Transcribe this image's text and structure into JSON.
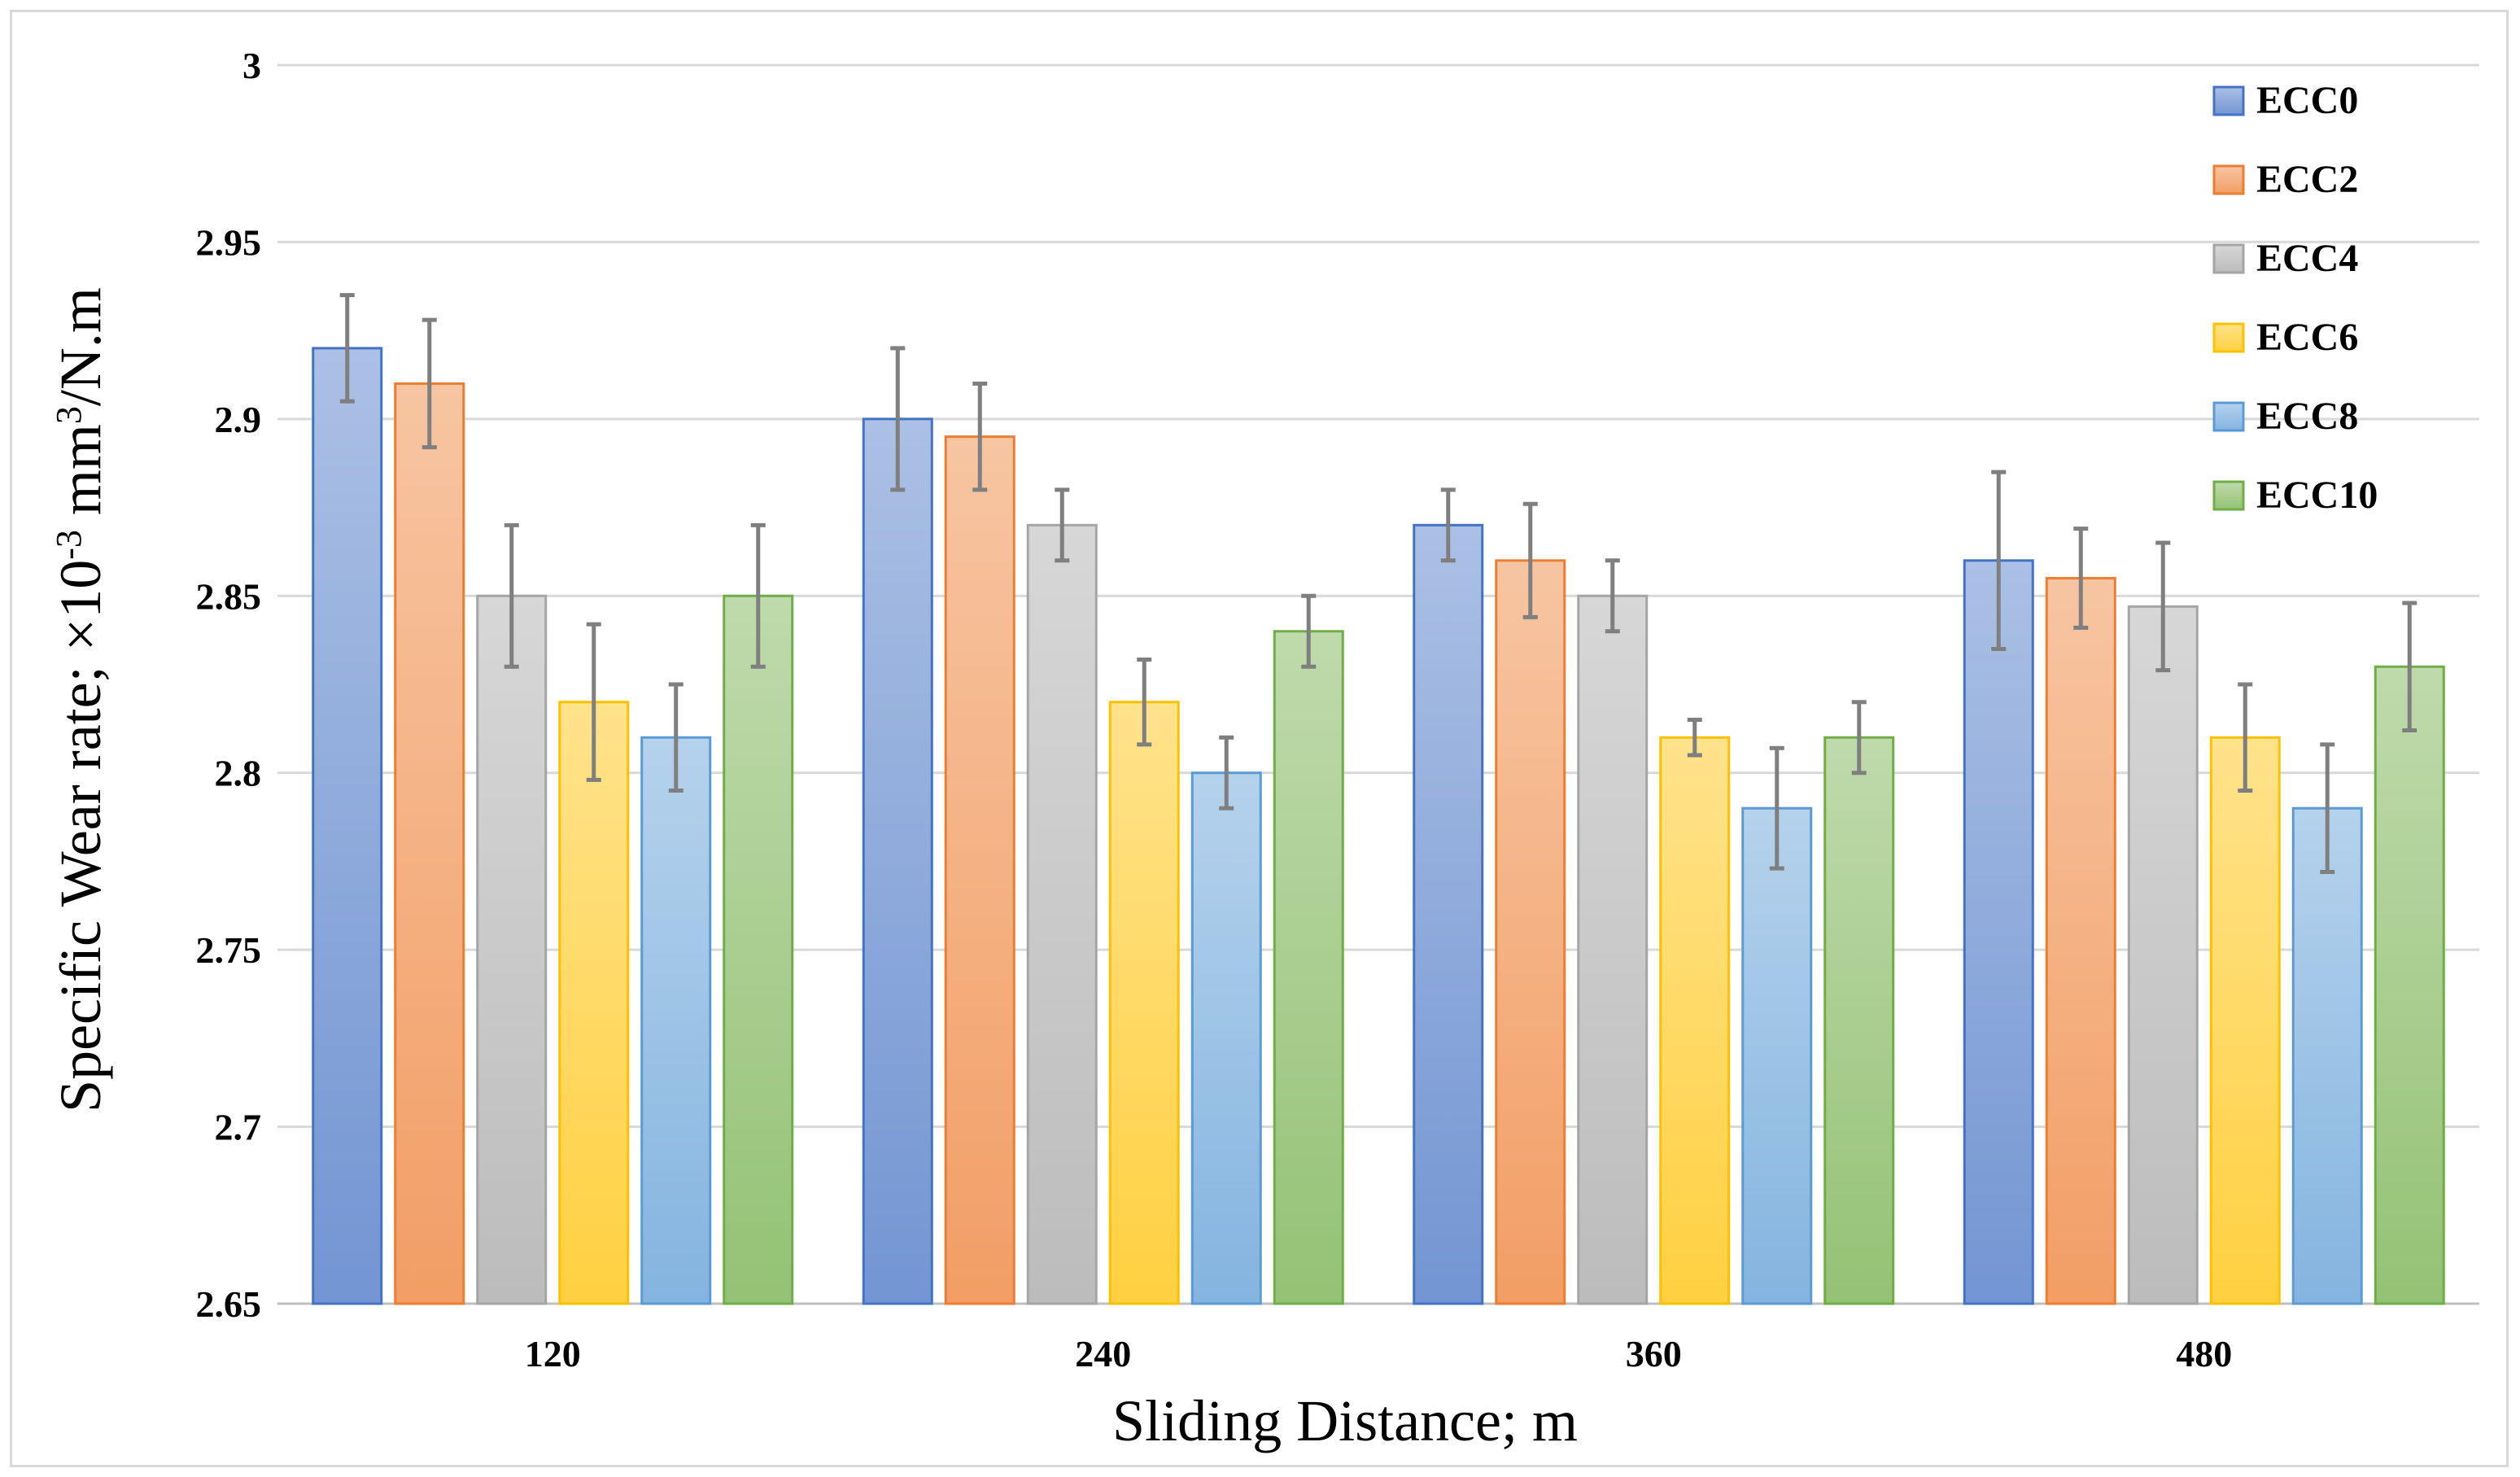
{
  "chart_data": {
    "type": "bar",
    "title": "",
    "xlabel": "Sliding Distance; m",
    "ylabel": {
      "prefix": "Specific Wear rate; ×10",
      "exp1": "-3",
      "mid": " mm",
      "exp2": "3",
      "suffix": "/N.m"
    },
    "categories": [
      "120",
      "240",
      "360",
      "480"
    ],
    "ylim": [
      2.65,
      3
    ],
    "yticks": [
      "2.65",
      "2.7",
      "2.75",
      "2.8",
      "2.85",
      "2.9",
      "2.95",
      "3"
    ],
    "grid": true,
    "legend_position": "top-right",
    "series": [
      {
        "name": "ECC0",
        "color": "#4472c4",
        "values": [
          2.92,
          2.9,
          2.87,
          2.86
        ],
        "errors": [
          0.015,
          0.02,
          0.01,
          0.025
        ]
      },
      {
        "name": "ECC2",
        "color": "#ed7d31",
        "values": [
          2.91,
          2.895,
          2.86,
          2.855
        ],
        "errors": [
          0.018,
          0.015,
          0.016,
          0.014
        ]
      },
      {
        "name": "ECC4",
        "color": "#a5a5a5",
        "values": [
          2.85,
          2.87,
          2.85,
          2.847
        ],
        "errors": [
          0.02,
          0.01,
          0.01,
          0.018
        ]
      },
      {
        "name": "ECC6",
        "color": "#ffc000",
        "values": [
          2.82,
          2.82,
          2.81,
          2.81
        ],
        "errors": [
          0.022,
          0.012,
          0.005,
          0.015
        ]
      },
      {
        "name": "ECC8",
        "color": "#5b9bd5",
        "values": [
          2.81,
          2.8,
          2.79,
          2.79
        ],
        "errors": [
          0.015,
          0.01,
          0.017,
          0.018
        ]
      },
      {
        "name": "ECC10",
        "color": "#70ad47",
        "values": [
          2.85,
          2.84,
          2.81,
          2.83
        ],
        "errors": [
          0.02,
          0.01,
          0.01,
          0.018
        ]
      }
    ]
  }
}
